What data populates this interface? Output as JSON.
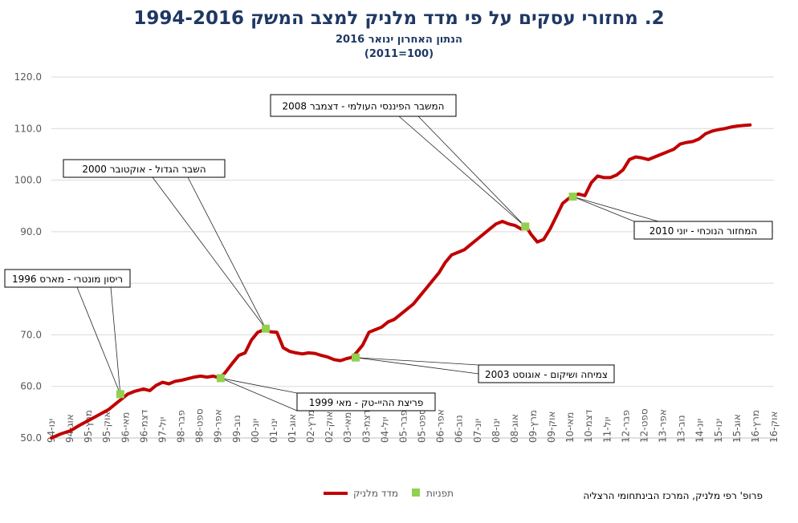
{
  "chart_data": {
    "type": "line",
    "title": "2. מחזורי עסקים על פי מדד מלניק למצב המשק 1994-2016",
    "subtitle": "הנתון האחרון ינואר 2016",
    "subtitle2": "(100=2011)",
    "ylim": [
      50,
      120
    ],
    "yticks": [
      "50.0",
      "60.0",
      "70.0",
      "80.0",
      "90.0",
      "100.0",
      "110.0",
      "120.0"
    ],
    "x_range": [
      1994.0,
      2016.75
    ],
    "x_tick_labels": [
      "ינו-94",
      "אוג-94",
      "מרץ-95",
      "אוק-95",
      "מאי-96",
      "דצמ-96",
      "יול-97",
      "פבר-98",
      "ספט-98",
      "אפר-99",
      "נוב-99",
      "יונ-00",
      "ינו-01",
      "אוג-01",
      "מרץ-02",
      "אוק-02",
      "מאי-03",
      "דצמ-03",
      "יול-04",
      "פבר-05",
      "ספט-05",
      "אפר-06",
      "נוב-06",
      "יונ-07",
      "ינו-08",
      "אוג-08",
      "מרץ-09",
      "אוק-09",
      "מאי-10",
      "דצמ-10",
      "יול-11",
      "פבר-12",
      "ספט-12",
      "אפר-13",
      "נוב-13",
      "יונ-14",
      "ינו-15",
      "אוג-15",
      "מרץ-16",
      "אוק-16"
    ],
    "series": [
      {
        "name": "מדד מלניק",
        "color": "#c00000",
        "x": [
          1994.0,
          1994.3,
          1994.6,
          1994.9,
          1995.2,
          1995.5,
          1995.8,
          1996.0,
          1996.2,
          1996.4,
          1996.6,
          1996.9,
          1997.1,
          1997.3,
          1997.5,
          1997.7,
          1997.9,
          1998.1,
          1998.3,
          1998.5,
          1998.7,
          1998.9,
          1999.1,
          1999.3,
          1999.45,
          1999.7,
          1999.9,
          2000.1,
          2000.3,
          2000.5,
          2000.7,
          2000.9,
          2001.1,
          2001.3,
          2001.5,
          2001.7,
          2001.9,
          2002.1,
          2002.3,
          2002.5,
          2002.7,
          2002.9,
          2003.1,
          2003.3,
          2003.45,
          2003.6,
          2003.8,
          2004.0,
          2004.2,
          2004.4,
          2004.6,
          2004.8,
          2005.0,
          2005.2,
          2005.4,
          2005.6,
          2005.8,
          2006.0,
          2006.2,
          2006.4,
          2006.6,
          2006.8,
          2007.0,
          2007.2,
          2007.4,
          2007.6,
          2007.8,
          2008.0,
          2008.2,
          2008.4,
          2008.6,
          2008.8,
          2008.95,
          2009.1,
          2009.3,
          2009.5,
          2009.7,
          2009.9,
          2010.1,
          2010.3,
          2010.45,
          2010.6,
          2010.8,
          2011.0,
          2011.2,
          2011.4,
          2011.6,
          2011.8,
          2012.0,
          2012.2,
          2012.4,
          2012.6,
          2012.8,
          2013.0,
          2013.2,
          2013.4,
          2013.6,
          2013.8,
          2014.0,
          2014.2,
          2014.4,
          2014.6,
          2014.8,
          2015.0,
          2015.2,
          2015.4,
          2015.6,
          2015.8,
          2016.0
        ],
        "values": [
          50.0,
          50.8,
          51.4,
          52.5,
          53.5,
          54.5,
          55.5,
          56.5,
          57.5,
          58.5,
          59.0,
          59.5,
          59.2,
          60.2,
          60.8,
          60.5,
          61.0,
          61.2,
          61.5,
          61.8,
          62.0,
          61.8,
          62.0,
          61.6,
          62.5,
          64.5,
          66.0,
          66.5,
          69.0,
          70.5,
          71.0,
          70.6,
          70.5,
          67.5,
          66.8,
          66.5,
          66.3,
          66.5,
          66.4,
          66.0,
          65.7,
          65.2,
          65.0,
          65.4,
          65.6,
          66.5,
          68.0,
          70.5,
          71.0,
          71.5,
          72.5,
          73.0,
          74.0,
          75.0,
          76.0,
          77.5,
          79.0,
          80.5,
          82.0,
          84.0,
          85.5,
          86.0,
          86.5,
          87.5,
          88.5,
          89.5,
          90.5,
          91.5,
          92.0,
          91.5,
          91.2,
          90.5,
          91.0,
          89.5,
          88.0,
          88.5,
          90.5,
          93.0,
          95.5,
          96.5,
          97.0,
          97.3,
          97.0,
          99.5,
          100.8,
          100.5,
          100.5,
          101.0,
          102.0,
          104.0,
          104.5,
          104.3,
          104.0,
          104.5,
          105.0,
          105.5,
          106.0,
          107.0,
          107.3,
          107.5,
          108.0,
          109.0,
          109.5,
          109.8,
          110.0,
          110.3,
          110.5,
          110.6,
          110.7
        ]
      }
    ],
    "turning_points": {
      "name": "תפניות",
      "color": "#92d050",
      "points": [
        {
          "x": 1996.17,
          "y": 58.5,
          "label": "ריסון מונטרי - מארס 1996"
        },
        {
          "x": 1999.33,
          "y": 61.6,
          "label": "פריצת ההיי-טק - מאי 1999"
        },
        {
          "x": 2000.75,
          "y": 71.2,
          "label": "השבר הגדול - אוקטובר 2000"
        },
        {
          "x": 2003.58,
          "y": 65.6,
          "label": "צמיחה ושיקום - אוגוסט 2003"
        },
        {
          "x": 2008.92,
          "y": 91.0,
          "label": "המשבר הפיננסי העולמי - דצמבר 2008"
        },
        {
          "x": 2010.42,
          "y": 96.8,
          "label": "המחזור הנוכחי - יוני 2010"
        }
      ]
    },
    "grid": true,
    "legend": "bottom-center"
  },
  "credit": "פרופ' רפי מלניק, המרכז הבינתחומי הרצליה"
}
